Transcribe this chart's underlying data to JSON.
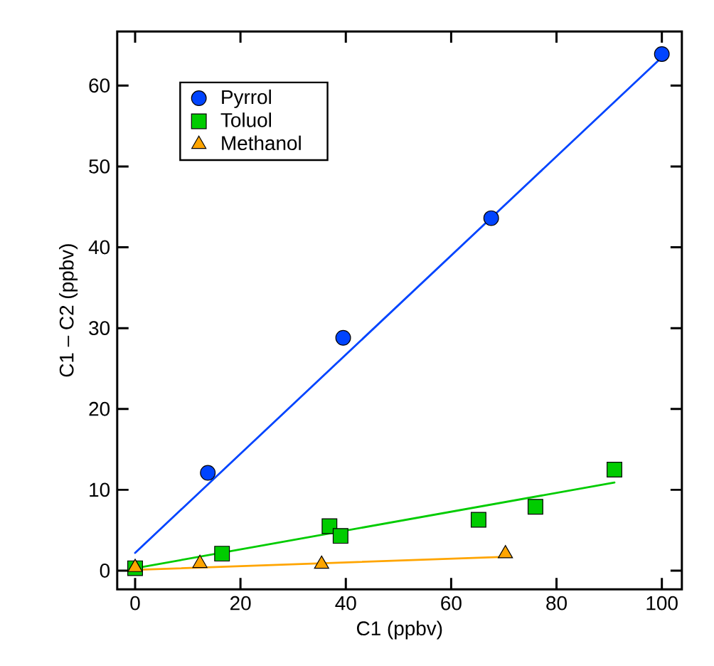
{
  "chart_data": {
    "type": "scatter",
    "xlabel": "C1 (ppbv)",
    "ylabel": "C1 – C2 (ppbv)",
    "xlim": [
      -3.4,
      103.8
    ],
    "ylim": [
      -2.3,
      66.7
    ],
    "xticks": [
      0,
      20,
      40,
      60,
      80,
      100
    ],
    "yticks": [
      0,
      10,
      20,
      30,
      40,
      50,
      60
    ],
    "grid": false,
    "legend": "top left",
    "series": [
      {
        "name": "Pyrrol",
        "marker": "circle",
        "color": "#0044ff",
        "x": [
          13.8,
          39.5,
          67.6,
          100
        ],
        "values": [
          12.1,
          28.8,
          43.6,
          63.9
        ]
      },
      {
        "name": "Toluol",
        "marker": "square",
        "color": "#00cc00",
        "x": [
          0,
          16.5,
          36.9,
          39.0,
          65.2,
          76.0,
          91.0
        ],
        "values": [
          0.3,
          2.1,
          5.5,
          4.3,
          6.3,
          7.9,
          12.5
        ]
      },
      {
        "name": "Methanol",
        "marker": "triangle",
        "color": "#ffa500",
        "x": [
          0,
          12.3,
          35.4,
          70.3
        ],
        "values": [
          0.4,
          0.9,
          0.8,
          2.1
        ]
      },
      {
        "type": "line",
        "marker": "none",
        "color": "#0044ff",
        "x": [
          0,
          100
        ],
        "values": [
          2.2,
          63.5
        ]
      },
      {
        "type": "line",
        "marker": "none",
        "color": "#00cc00",
        "x": [
          0,
          91
        ],
        "values": [
          0.3,
          10.9
        ]
      },
      {
        "type": "line",
        "marker": "none",
        "color": "#ffa500",
        "x": [
          0,
          70
        ],
        "values": [
          0.1,
          1.7
        ]
      }
    ]
  }
}
